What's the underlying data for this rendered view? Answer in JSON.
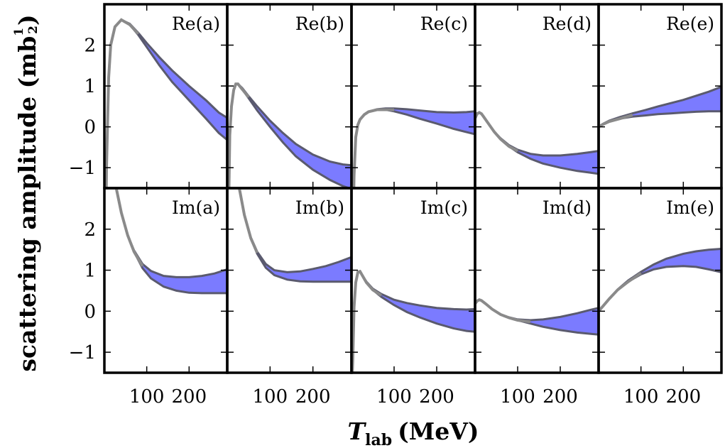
{
  "chart_data": {
    "type": "area",
    "description_kind": "grid of band plots (uncertainty bands between lower and upper curves)",
    "xlabel_main": "T",
    "xlabel_sub": "lab",
    "xlabel_unit": "(MeV)",
    "ylabel_main": "scattering amplitude (mb",
    "ylabel_exp_num": "1",
    "ylabel_exp_den": "2",
    "ylabel_close": ")",
    "xlim": [
      0,
      290
    ],
    "ylim": [
      -1.5,
      3.0
    ],
    "xticks": [
      100,
      200
    ],
    "yticks": [
      -1,
      0,
      1,
      2
    ],
    "ytick_labels": [
      "−1",
      "0",
      "1",
      "2"
    ],
    "xtick_labels": [
      "100",
      "200"
    ],
    "panels": [
      {
        "label": "Re(a)",
        "row": 0,
        "col": 0,
        "x": [
          0,
          5,
          10,
          15,
          25,
          40,
          60,
          80,
          100,
          130,
          160,
          200,
          240,
          270,
          290
        ],
        "lower": [
          -6,
          -1.0,
          1.2,
          2.0,
          2.45,
          2.62,
          2.5,
          2.25,
          1.95,
          1.5,
          1.1,
          0.65,
          0.2,
          -0.15,
          -0.32
        ],
        "upper": [
          -6,
          -1.0,
          1.2,
          2.0,
          2.45,
          2.62,
          2.52,
          2.3,
          2.05,
          1.7,
          1.38,
          1.0,
          0.65,
          0.35,
          0.22
        ]
      },
      {
        "label": "Re(b)",
        "row": 0,
        "col": 1,
        "x": [
          0,
          3,
          6,
          10,
          15,
          20,
          25,
          35,
          50,
          70,
          100,
          130,
          160,
          200,
          240,
          270,
          290
        ],
        "lower": [
          -3,
          -2.2,
          -0.2,
          0.5,
          0.9,
          1.05,
          1.05,
          0.92,
          0.7,
          0.4,
          0.0,
          -0.38,
          -0.72,
          -1.05,
          -1.3,
          -1.45,
          -1.52
        ],
        "upper": [
          -3,
          -2.2,
          -0.2,
          0.5,
          0.9,
          1.05,
          1.05,
          0.95,
          0.75,
          0.5,
          0.15,
          -0.15,
          -0.42,
          -0.68,
          -0.85,
          -0.92,
          -0.94
        ]
      },
      {
        "label": "Re(c)",
        "row": 0,
        "col": 2,
        "x": [
          0,
          3,
          6,
          10,
          15,
          20,
          30,
          40,
          60,
          80,
          100,
          130,
          160,
          200,
          240,
          270,
          290
        ],
        "lower": [
          -6,
          -3.0,
          -1.2,
          -0.25,
          0.05,
          0.18,
          0.3,
          0.37,
          0.42,
          0.42,
          0.38,
          0.3,
          0.2,
          0.08,
          -0.05,
          -0.13,
          -0.18
        ],
        "upper": [
          -6,
          -3.0,
          -1.2,
          -0.25,
          0.05,
          0.18,
          0.3,
          0.37,
          0.43,
          0.45,
          0.45,
          0.43,
          0.4,
          0.36,
          0.35,
          0.36,
          0.38
        ]
      },
      {
        "label": "Re(d)",
        "row": 0,
        "col": 3,
        "x": [
          0,
          3,
          6,
          10,
          15,
          20,
          30,
          45,
          60,
          80,
          100,
          130,
          160,
          200,
          240,
          270,
          290
        ],
        "lower": [
          0.2,
          0.28,
          0.33,
          0.35,
          0.32,
          0.25,
          0.1,
          -0.12,
          -0.3,
          -0.48,
          -0.62,
          -0.78,
          -0.9,
          -1.0,
          -1.08,
          -1.12,
          -1.15
        ],
        "upper": [
          0.2,
          0.28,
          0.33,
          0.35,
          0.32,
          0.25,
          0.1,
          -0.12,
          -0.28,
          -0.45,
          -0.56,
          -0.66,
          -0.7,
          -0.7,
          -0.66,
          -0.62,
          -0.59
        ]
      },
      {
        "label": "Re(e)",
        "row": 0,
        "col": 4,
        "x": [
          0,
          10,
          25,
          50,
          80,
          110,
          140,
          170,
          200,
          230,
          260,
          290
        ],
        "lower": [
          0.0,
          0.06,
          0.13,
          0.2,
          0.25,
          0.28,
          0.31,
          0.33,
          0.35,
          0.37,
          0.38,
          0.38
        ],
        "upper": [
          0.0,
          0.07,
          0.15,
          0.24,
          0.33,
          0.41,
          0.5,
          0.58,
          0.66,
          0.76,
          0.86,
          0.98
        ]
      },
      {
        "label": "Im(a)",
        "row": 1,
        "col": 0,
        "x": [
          0,
          20,
          30,
          40,
          55,
          70,
          90,
          110,
          140,
          170,
          200,
          230,
          260,
          290
        ],
        "lower": [
          8,
          3.4,
          2.9,
          2.4,
          1.85,
          1.45,
          1.05,
          0.8,
          0.6,
          0.5,
          0.45,
          0.44,
          0.44,
          0.44
        ],
        "upper": [
          8,
          3.4,
          2.9,
          2.4,
          1.85,
          1.48,
          1.15,
          0.98,
          0.86,
          0.83,
          0.83,
          0.86,
          0.92,
          1.02
        ]
      },
      {
        "label": "Im(b)",
        "row": 1,
        "col": 1,
        "x": [
          0,
          20,
          30,
          40,
          55,
          70,
          90,
          110,
          140,
          170,
          200,
          230,
          260,
          290
        ],
        "lower": [
          8,
          3.4,
          2.9,
          2.35,
          1.78,
          1.4,
          1.06,
          0.88,
          0.77,
          0.73,
          0.72,
          0.72,
          0.72,
          0.72
        ],
        "upper": [
          8,
          3.4,
          2.9,
          2.35,
          1.8,
          1.45,
          1.15,
          1.0,
          0.95,
          0.97,
          1.03,
          1.1,
          1.2,
          1.32
        ]
      },
      {
        "label": "Im(c)",
        "row": 1,
        "col": 2,
        "x": [
          0,
          3,
          6,
          10,
          15,
          20,
          25,
          35,
          50,
          70,
          100,
          130,
          160,
          200,
          240,
          270,
          290
        ],
        "lower": [
          -2,
          -1.2,
          0.1,
          0.7,
          0.95,
          0.97,
          0.88,
          0.7,
          0.52,
          0.35,
          0.15,
          -0.02,
          -0.15,
          -0.3,
          -0.42,
          -0.48,
          -0.5
        ],
        "upper": [
          -2,
          -1.2,
          0.1,
          0.7,
          0.95,
          0.97,
          0.88,
          0.72,
          0.55,
          0.42,
          0.28,
          0.2,
          0.14,
          0.08,
          0.05,
          0.04,
          0.05
        ]
      },
      {
        "label": "Im(d)",
        "row": 1,
        "col": 3,
        "x": [
          0,
          5,
          10,
          15,
          25,
          40,
          60,
          80,
          100,
          130,
          160,
          200,
          240,
          270,
          290
        ],
        "lower": [
          0.18,
          0.25,
          0.28,
          0.26,
          0.18,
          0.05,
          -0.08,
          -0.16,
          -0.22,
          -0.3,
          -0.38,
          -0.46,
          -0.52,
          -0.55,
          -0.57
        ],
        "upper": [
          0.18,
          0.25,
          0.28,
          0.26,
          0.18,
          0.05,
          -0.08,
          -0.15,
          -0.2,
          -0.22,
          -0.2,
          -0.14,
          -0.05,
          0.03,
          0.08
        ]
      },
      {
        "label": "Im(e)",
        "row": 1,
        "col": 4,
        "x": [
          0,
          10,
          25,
          45,
          70,
          100,
          130,
          160,
          200,
          230,
          260,
          290
        ],
        "lower": [
          0.0,
          0.12,
          0.3,
          0.52,
          0.72,
          0.9,
          1.02,
          1.08,
          1.1,
          1.08,
          1.02,
          0.95
        ],
        "upper": [
          0.0,
          0.12,
          0.3,
          0.53,
          0.75,
          0.96,
          1.14,
          1.28,
          1.4,
          1.46,
          1.5,
          1.52
        ]
      }
    ]
  },
  "colors": {
    "band": "#7b7bff",
    "bound": "#5a5a6e",
    "frame": "#000000"
  }
}
